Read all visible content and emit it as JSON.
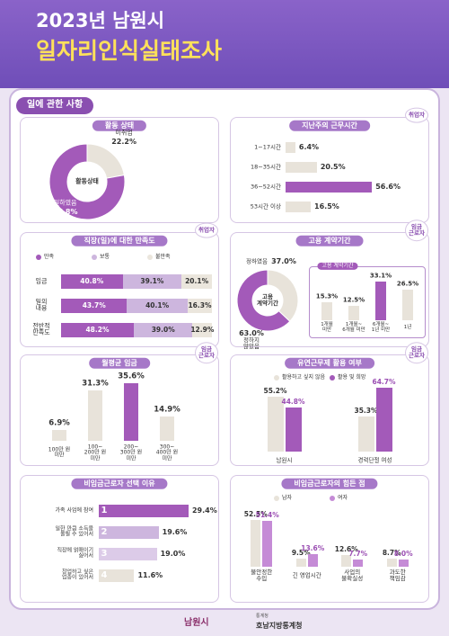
{
  "header": {
    "title_line1": "2023년 남원시",
    "title_line2": "일자리인식실태조사"
  },
  "section": "일에 관한 사항",
  "chart_data": [
    {
      "type": "donut",
      "title": "활동 상태",
      "center_label": "활동상태",
      "categories": [
        "미취업",
        "일하였음"
      ],
      "values": [
        22.2,
        77.8
      ],
      "value_labels": [
        "22.2%",
        "77.8%"
      ],
      "colors": [
        "#e8e3da",
        "#a35ab9"
      ]
    },
    {
      "type": "hbar",
      "title": "지난주의 근무시간",
      "badge": "취업자",
      "categories": [
        "1~17시간",
        "18~35시간",
        "36~52시간",
        "53시간 이상"
      ],
      "values": [
        6.4,
        20.5,
        56.6,
        16.5
      ],
      "value_labels": [
        "6.4%",
        "20.5%",
        "56.6%",
        "16.5%"
      ],
      "colors": [
        "#e8e3da",
        "#e8e3da",
        "#a35ab9",
        "#e8e3da"
      ]
    },
    {
      "type": "stacked_hbar",
      "title": "직장(일)에 대한 만족도",
      "badge": "취업자",
      "categories": [
        "임금",
        "일의\n내용",
        "전반적\n만족도"
      ],
      "series": [
        {
          "name": "만족",
          "color": "#a35ab9",
          "values": [
            40.8,
            43.7,
            48.2
          ],
          "value_labels": [
            "40.8%",
            "43.7%",
            "48.2%"
          ]
        },
        {
          "name": "보통",
          "color": "#cdb6de",
          "values": [
            39.1,
            40.1,
            39.0
          ],
          "value_labels": [
            "39.1%",
            "40.1%",
            "39.0%"
          ]
        },
        {
          "name": "불만족",
          "color": "#ebe6dd",
          "values": [
            20.1,
            16.3,
            12.9
          ],
          "value_labels": [
            "20.1%",
            "16.3%",
            "12.9%"
          ]
        }
      ]
    },
    {
      "type": "donut_bar",
      "title": "고용 계약기간",
      "badge": "임금\n근로자",
      "center_label": "고용\n계약기간",
      "categories": [
        "정하였음",
        "정하지\n않았음"
      ],
      "values": [
        37.0,
        63.0
      ],
      "value_labels": [
        "37.0%",
        "63.0%"
      ],
      "colors": [
        "#e8e3da",
        "#a35ab9"
      ],
      "detail": {
        "title": "고용 계약기간",
        "categories": [
          "1개월\n미만",
          "1개월~\n6개월 미만",
          "6개월~\n1년 미만",
          "1년"
        ],
        "values": [
          15.3,
          12.5,
          33.1,
          26.5
        ],
        "value_labels": [
          "15.3%",
          "12.5%",
          "33.1%",
          "26.5%"
        ],
        "colors": [
          "#e8e3da",
          "#e8e3da",
          "#a35ab9",
          "#e8e3da"
        ]
      }
    },
    {
      "type": "vbar",
      "title": "월평균 임금",
      "badge": "임금\n근로자",
      "categories": [
        "100만 원\n미만",
        "100~\n200만 원\n미만",
        "200~\n300만 원\n미만",
        "300~\n400만 원\n미만"
      ],
      "values": [
        6.9,
        31.3,
        35.6,
        14.9
      ],
      "value_labels": [
        "6.9%",
        "31.3%",
        "35.6%",
        "14.9%"
      ],
      "colors": [
        "#e8e3da",
        "#e8e3da",
        "#a35ab9",
        "#e8e3da"
      ]
    },
    {
      "type": "grouped_vbar",
      "title": "유연근무제 활용 여부",
      "badge": "임금\n근로자",
      "categories": [
        "남원시",
        "경력단절 여성"
      ],
      "series": [
        {
          "name": "활용하고 싶지 않음",
          "color": "#e8e3da",
          "values": [
            55.2,
            35.3
          ],
          "value_labels": [
            "55.2%",
            "35.3%"
          ]
        },
        {
          "name": "활용 및 희망",
          "color": "#a35ab9",
          "values": [
            44.8,
            64.7
          ],
          "value_labels": [
            "44.8%",
            "64.7%"
          ]
        }
      ]
    },
    {
      "type": "ranked_hbar",
      "title": "비임금근로자 선택 이유",
      "categories": [
        "가족 사업에 참여",
        "일한 만큼 소득을\n올릴 수 있어서",
        "직장에 얽매이기\n싫어서",
        "창업하고 싶은\n업종이 있어서"
      ],
      "ranks": [
        1,
        2,
        3,
        4
      ],
      "values": [
        29.4,
        19.6,
        19.0,
        11.6
      ],
      "value_labels": [
        "29.4%",
        "19.6%",
        "19.0%",
        "11.6%"
      ],
      "colors": [
        "#a35ab9",
        "#cdb6de",
        "#dccbe8",
        "#e8e3da"
      ]
    },
    {
      "type": "grouped_vbar",
      "title": "비임금근로자의 힘든 점",
      "categories": [
        "불안정한\n수입",
        "긴 영업시간",
        "사업의\n불확실성",
        "과도한\n책임감"
      ],
      "series": [
        {
          "name": "남자",
          "color": "#e8e3da",
          "values": [
            52.5,
            9.5,
            12.6,
            8.7
          ],
          "value_labels": [
            "52.5%",
            "9.5%",
            "12.6%",
            "8.7%"
          ]
        },
        {
          "name": "여자",
          "color": "#c58bd6",
          "values": [
            51.4,
            13.6,
            7.7,
            8.0
          ],
          "value_labels": [
            "51.4%",
            "13.6%",
            "7.7%",
            "8.0%"
          ]
        }
      ]
    }
  ],
  "footer": {
    "left": "남원시",
    "right_small": "통계청",
    "right": "호남지방통계청"
  }
}
